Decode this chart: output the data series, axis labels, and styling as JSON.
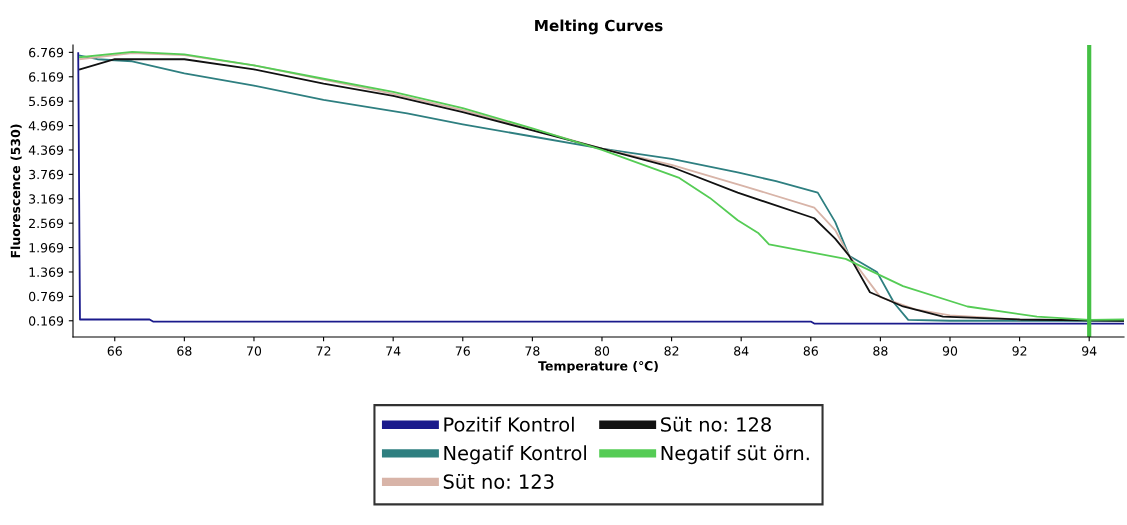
{
  "chart_data": {
    "type": "line",
    "title": "Melting Curves",
    "xlabel": "Temperature (℃)",
    "ylabel": "Fluorescence (530)",
    "xlim": [
      64.8,
      95.0
    ],
    "ylim": [
      -0.23,
      6.95
    ],
    "xticks": [
      66,
      68,
      70,
      72,
      74,
      76,
      78,
      80,
      82,
      84,
      86,
      88,
      90,
      92,
      94
    ],
    "yticks": [
      0.169,
      0.769,
      1.369,
      1.969,
      2.569,
      3.169,
      3.769,
      4.369,
      4.969,
      5.569,
      6.169,
      6.769
    ],
    "legend": "bottom",
    "grid": false,
    "marker": "none",
    "line_style": "solid",
    "ref_lines": [
      {
        "axis": "x",
        "value": 94,
        "color": "#44c044"
      }
    ],
    "series": [
      {
        "name": "Pozitif Kontrol",
        "color": "#1a1a8c",
        "x": [
          64.95,
          65.0,
          67.0,
          67.1,
          86.0,
          86.1,
          95.0
        ],
        "values": [
          6.75,
          0.2,
          0.2,
          0.15,
          0.15,
          0.1,
          0.1
        ]
      },
      {
        "name": "Negatif Kontrol",
        "color": "#2e7f80",
        "x": [
          65.0,
          65.5,
          66.5,
          68,
          70,
          72,
          74.4,
          76,
          78,
          80,
          82,
          83.9,
          85,
          86.2,
          86.7,
          87.1,
          87.9,
          88.4,
          88.8,
          90,
          92,
          95
        ],
        "values": [
          6.69,
          6.6,
          6.55,
          6.25,
          5.95,
          5.6,
          5.27,
          5.0,
          4.7,
          4.4,
          4.15,
          3.82,
          3.6,
          3.32,
          2.6,
          1.77,
          1.37,
          0.6,
          0.19,
          0.17,
          0.17,
          0.17
        ]
      },
      {
        "name": "Süt no: 123",
        "color": "#d8b4a8",
        "x": [
          65.0,
          66.5,
          68,
          70,
          72,
          74,
          76,
          78,
          80,
          82,
          84,
          86.1,
          86.7,
          87.1,
          88,
          89,
          90,
          92
        ],
        "values": [
          6.6,
          6.75,
          6.7,
          6.45,
          6.1,
          5.75,
          5.35,
          4.88,
          4.4,
          4.0,
          3.5,
          2.95,
          2.4,
          1.77,
          0.75,
          0.45,
          0.3,
          0.2
        ]
      },
      {
        "name": "Süt no: 128",
        "color": "#111111",
        "x": [
          65.0,
          66,
          68,
          70,
          72,
          74,
          76,
          78,
          80,
          82,
          83.9,
          86.1,
          86.7,
          87.1,
          87.7,
          88.65,
          89.8,
          92,
          95
        ],
        "values": [
          6.35,
          6.6,
          6.6,
          6.35,
          6.0,
          5.7,
          5.3,
          4.85,
          4.4,
          3.95,
          3.32,
          2.69,
          2.19,
          1.77,
          0.87,
          0.52,
          0.27,
          0.2,
          0.17
        ]
      },
      {
        "name": "Negatif süt örn.",
        "color": "#55cc55",
        "x": [
          65.0,
          66.5,
          68,
          70,
          72,
          74,
          76,
          78,
          80,
          82.2,
          83.1,
          83.9,
          84.5,
          84.8,
          87.0,
          88.65,
          90.5,
          92.5,
          94,
          95
        ],
        "values": [
          6.65,
          6.78,
          6.72,
          6.45,
          6.12,
          5.8,
          5.4,
          4.9,
          4.37,
          3.69,
          3.19,
          2.64,
          2.32,
          2.05,
          1.69,
          1.02,
          0.52,
          0.27,
          0.19,
          0.2
        ]
      }
    ]
  }
}
